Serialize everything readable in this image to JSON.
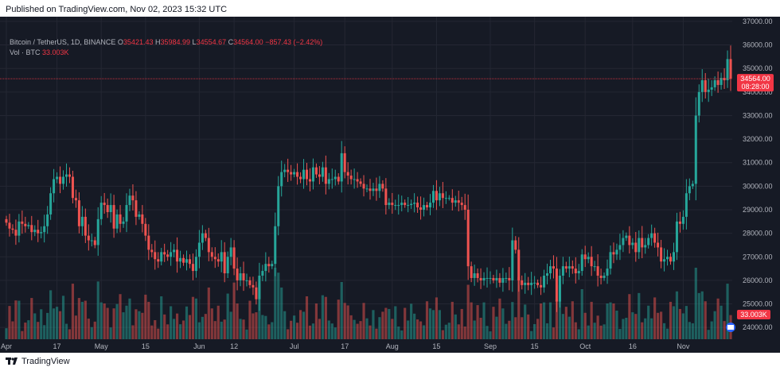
{
  "published": "Published on TradingView.com, Nov 02, 2023 15:32 UTC",
  "legend": {
    "symbol": "Bitcoin / TetherUS, 1D, BINANCE",
    "o_label": "O",
    "o": "35421.43",
    "h_label": "H",
    "h": "35984.99",
    "l_label": "L",
    "l": "34554.67",
    "c_label": "C",
    "c": "34564.00",
    "chg": "−857.43 (−2.42%)",
    "vol_label": "Vol · BTC",
    "vol": "33.003K"
  },
  "price_tag": {
    "price": "34564.00",
    "countdown": "08:28:00"
  },
  "vol_tag": "33.003K",
  "footer": {
    "brand": "TradingView"
  },
  "colors": {
    "up": "#26a69a",
    "down": "#ef5350",
    "bg": "#161a25",
    "grid": "#242733",
    "text": "#b2b5be",
    "tag": "#f23645"
  },
  "chart_data": {
    "type": "candlestick",
    "ylim": [
      23500,
      37200
    ],
    "yticks": [
      24000,
      25000,
      26000,
      27000,
      28000,
      29000,
      30000,
      31000,
      32000,
      33000,
      34000,
      35000,
      36000,
      37000
    ],
    "ytick_labels": [
      "24000.00",
      "25000.00",
      "26000.00",
      "27000.00",
      "28000.00",
      "29000.00",
      "30000.00",
      "31000.00",
      "32000.00",
      "33000.00",
      "34000.00",
      "35000.00",
      "36000.00",
      "37000.00"
    ],
    "xticks": [
      {
        "label": "Apr",
        "index": 0
      },
      {
        "label": "17",
        "index": 16
      },
      {
        "label": "May",
        "index": 30
      },
      {
        "label": "15",
        "index": 44
      },
      {
        "label": "Jun",
        "index": 61
      },
      {
        "label": "12",
        "index": 72
      },
      {
        "label": "Jul",
        "index": 91
      },
      {
        "label": "17",
        "index": 107
      },
      {
        "label": "Aug",
        "index": 122
      },
      {
        "label": "15",
        "index": 136
      },
      {
        "label": "Sep",
        "index": 153
      },
      {
        "label": "15",
        "index": 167
      },
      {
        "label": "Oct",
        "index": 183
      },
      {
        "label": "16",
        "index": 198
      },
      {
        "label": "Nov",
        "index": 214
      }
    ],
    "closes": [
      28450,
      28200,
      28150,
      27900,
      28500,
      28400,
      28300,
      28350,
      28050,
      28150,
      28000,
      28050,
      28300,
      28800,
      29700,
      30300,
      30400,
      30100,
      30400,
      30500,
      30400,
      29500,
      29400,
      28300,
      28700,
      27900,
      27700,
      27700,
      27500,
      28600,
      29300,
      29200,
      28900,
      29200,
      28200,
      28800,
      28400,
      28500,
      29200,
      29600,
      29400,
      28700,
      28800,
      28400,
      27900,
      27300,
      27200,
      26900,
      26800,
      27200,
      27100,
      27000,
      27200,
      27300,
      26800,
      26950,
      26750,
      26900,
      26700,
      26400,
      27000,
      27600,
      28000,
      27800,
      27200,
      27000,
      26900,
      26800,
      27200,
      26300,
      27000,
      27400,
      26500,
      26000,
      26300,
      26000,
      26000,
      25800,
      25700,
      25200,
      26200,
      26400,
      26700,
      26600,
      26700,
      28300,
      30000,
      30600,
      30700,
      30600,
      30500,
      30600,
      30400,
      30300,
      30700,
      30300,
      30200,
      30800,
      30500,
      30400,
      30800,
      30100,
      30300,
      30300,
      30400,
      30200,
      31400,
      30600,
      30450,
      30300,
      30300,
      30200,
      30100,
      29900,
      29900,
      29800,
      29900,
      29800,
      30100,
      29900,
      29200,
      29300,
      29200,
      29200,
      29200,
      29300,
      29200,
      29200,
      29250,
      29300,
      29100,
      29000,
      29200,
      29100,
      29300,
      29800,
      29400,
      29700,
      29500,
      29500,
      29500,
      29300,
      29400,
      29300,
      29200,
      29000,
      26600,
      26100,
      26300,
      26100,
      26000,
      26100,
      26100,
      26100,
      26000,
      26100,
      25900,
      26100,
      26100,
      26000,
      27700,
      27300,
      26000,
      25800,
      25900,
      25800,
      25900,
      25900,
      25800,
      25700,
      26200,
      26300,
      26600,
      26500,
      25100,
      26200,
      26600,
      26500,
      26600,
      26500,
      26300,
      26400,
      27100,
      26900,
      27000,
      26600,
      26600,
      26200,
      26100,
      26200,
      26500,
      27200,
      27100,
      27300,
      27500,
      27800,
      27900,
      27500,
      27600,
      27200,
      27800,
      27400,
      27500,
      27800,
      28000,
      27600,
      27400,
      26800,
      26900,
      27000,
      26800,
      27200,
      28500,
      28400,
      28700,
      29700,
      30000,
      30100,
      33000,
      34000,
      34500,
      34000,
      34100,
      34200,
      34500,
      34300,
      34600,
      34500,
      35400,
      34564
    ],
    "volume_unit": "K BTC",
    "volume_max": 65
  }
}
